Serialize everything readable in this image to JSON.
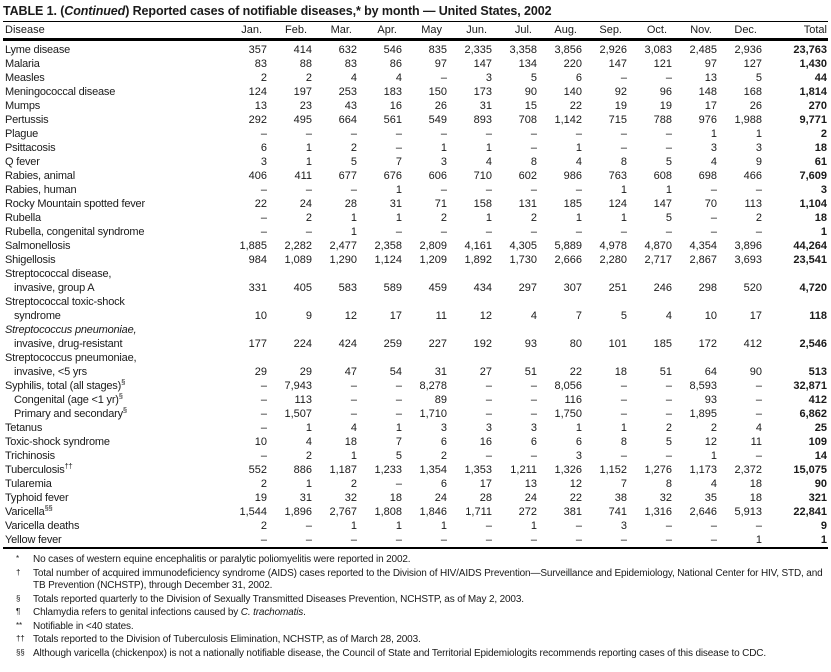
{
  "title": {
    "prefix": "TABLE 1. (",
    "continued": "Continued",
    "suffix": ") Reported cases of notifiable diseases,* by month — United States, 2002"
  },
  "table": {
    "columns": [
      "Disease",
      "Jan.",
      "Feb.",
      "Mar.",
      "Apr.",
      "May",
      "Jun.",
      "Jul.",
      "Aug.",
      "Sep.",
      "Oct.",
      "Nov.",
      "Dec.",
      "Total"
    ],
    "dash": "–",
    "rows": [
      {
        "label": "Lyme disease",
        "values": [
          "357",
          "414",
          "632",
          "546",
          "835",
          "2,335",
          "3,358",
          "3,856",
          "2,926",
          "3,083",
          "2,485",
          "2,936",
          "23,763"
        ]
      },
      {
        "label": "Malaria",
        "values": [
          "83",
          "88",
          "83",
          "86",
          "97",
          "147",
          "134",
          "220",
          "147",
          "121",
          "97",
          "127",
          "1,430"
        ]
      },
      {
        "label": "Measles",
        "values": [
          "2",
          "2",
          "4",
          "4",
          "–",
          "3",
          "5",
          "6",
          "–",
          "–",
          "13",
          "5",
          "44"
        ]
      },
      {
        "label": "Meningococcal disease",
        "values": [
          "124",
          "197",
          "253",
          "183",
          "150",
          "173",
          "90",
          "140",
          "92",
          "96",
          "148",
          "168",
          "1,814"
        ]
      },
      {
        "label": "Mumps",
        "values": [
          "13",
          "23",
          "43",
          "16",
          "26",
          "31",
          "15",
          "22",
          "19",
          "19",
          "17",
          "26",
          "270"
        ]
      },
      {
        "label": "Pertussis",
        "values": [
          "292",
          "495",
          "664",
          "561",
          "549",
          "893",
          "708",
          "1,142",
          "715",
          "788",
          "976",
          "1,988",
          "9,771"
        ]
      },
      {
        "label": "Plague",
        "values": [
          "–",
          "–",
          "–",
          "–",
          "–",
          "–",
          "–",
          "–",
          "–",
          "–",
          "1",
          "1",
          "2"
        ]
      },
      {
        "label": "Psittacosis",
        "values": [
          "6",
          "1",
          "2",
          "–",
          "1",
          "1",
          "–",
          "1",
          "–",
          "–",
          "3",
          "3",
          "18"
        ]
      },
      {
        "label": "Q fever",
        "values": [
          "3",
          "1",
          "5",
          "7",
          "3",
          "4",
          "8",
          "4",
          "8",
          "5",
          "4",
          "9",
          "61"
        ]
      },
      {
        "label": "Rabies, animal",
        "values": [
          "406",
          "411",
          "677",
          "676",
          "606",
          "710",
          "602",
          "986",
          "763",
          "608",
          "698",
          "466",
          "7,609"
        ]
      },
      {
        "label": "Rabies, human",
        "values": [
          "–",
          "–",
          "–",
          "1",
          "–",
          "–",
          "–",
          "–",
          "1",
          "1",
          "–",
          "–",
          "3"
        ]
      },
      {
        "label": "Rocky Mountain spotted fever",
        "values": [
          "22",
          "24",
          "28",
          "31",
          "71",
          "158",
          "131",
          "185",
          "124",
          "147",
          "70",
          "113",
          "1,104"
        ]
      },
      {
        "label": "Rubella",
        "values": [
          "–",
          "2",
          "1",
          "1",
          "2",
          "1",
          "2",
          "1",
          "1",
          "5",
          "–",
          "2",
          "18"
        ]
      },
      {
        "label": "Rubella, congenital syndrome",
        "values": [
          "–",
          "–",
          "1",
          "–",
          "–",
          "–",
          "–",
          "–",
          "–",
          "–",
          "–",
          "–",
          "1"
        ]
      },
      {
        "label": "Salmonellosis",
        "values": [
          "1,885",
          "2,282",
          "2,477",
          "2,358",
          "2,809",
          "4,161",
          "4,305",
          "5,889",
          "4,978",
          "4,870",
          "4,354",
          "3,896",
          "44,264"
        ]
      },
      {
        "label": "Shigellosis",
        "values": [
          "984",
          "1,089",
          "1,290",
          "1,124",
          "1,209",
          "1,892",
          "1,730",
          "2,666",
          "2,280",
          "2,717",
          "2,867",
          "3,693",
          "23,541"
        ]
      },
      {
        "label": "Streptococcal disease,",
        "values": null
      },
      {
        "label": "invasive, group A",
        "indent": 1,
        "values": [
          "331",
          "405",
          "583",
          "589",
          "459",
          "434",
          "297",
          "307",
          "251",
          "246",
          "298",
          "520",
          "4,720"
        ]
      },
      {
        "label": "Streptococcal toxic-shock",
        "values": null
      },
      {
        "label": "syndrome",
        "indent": 1,
        "values": [
          "10",
          "9",
          "12",
          "17",
          "11",
          "12",
          "4",
          "7",
          "5",
          "4",
          "10",
          "17",
          "118"
        ]
      },
      {
        "label": "Streptococcus pneumoniae,",
        "italic": true,
        "values": null
      },
      {
        "label": "invasive, drug-resistant",
        "indent": 1,
        "values": [
          "177",
          "224",
          "424",
          "259",
          "227",
          "192",
          "93",
          "80",
          "101",
          "185",
          "172",
          "412",
          "2,546"
        ]
      },
      {
        "label": "Streptococcus pneumoniae,",
        "values": null
      },
      {
        "label": "invasive, <5 yrs",
        "indent": 1,
        "values": [
          "29",
          "29",
          "47",
          "54",
          "31",
          "27",
          "51",
          "22",
          "18",
          "51",
          "64",
          "90",
          "513"
        ]
      },
      {
        "label": "Syphilis, total (all stages)",
        "sup": "§",
        "values": [
          "–",
          "7,943",
          "–",
          "–",
          "8,278",
          "–",
          "–",
          "8,056",
          "–",
          "–",
          "8,593",
          "–",
          "32,871"
        ]
      },
      {
        "label": "Congenital (age <1 yr)",
        "sup": "§",
        "indent": 1,
        "values": [
          "–",
          "113",
          "–",
          "–",
          "89",
          "–",
          "–",
          "116",
          "–",
          "–",
          "93",
          "–",
          "412"
        ]
      },
      {
        "label": "Primary and secondary",
        "sup": "§",
        "indent": 1,
        "values": [
          "–",
          "1,507",
          "–",
          "–",
          "1,710",
          "–",
          "–",
          "1,750",
          "–",
          "–",
          "1,895",
          "–",
          "6,862"
        ]
      },
      {
        "label": "Tetanus",
        "values": [
          "–",
          "1",
          "4",
          "1",
          "3",
          "3",
          "3",
          "1",
          "1",
          "2",
          "2",
          "4",
          "25"
        ]
      },
      {
        "label": "Toxic-shock syndrome",
        "values": [
          "10",
          "4",
          "18",
          "7",
          "6",
          "16",
          "6",
          "6",
          "8",
          "5",
          "12",
          "11",
          "109"
        ]
      },
      {
        "label": "Trichinosis",
        "values": [
          "–",
          "2",
          "1",
          "5",
          "2",
          "–",
          "–",
          "3",
          "–",
          "–",
          "1",
          "–",
          "14"
        ]
      },
      {
        "label": "Tuberculosis",
        "sup": "††",
        "values": [
          "552",
          "886",
          "1,187",
          "1,233",
          "1,354",
          "1,353",
          "1,211",
          "1,326",
          "1,152",
          "1,276",
          "1,173",
          "2,372",
          "15,075"
        ]
      },
      {
        "label": "Tularemia",
        "values": [
          "2",
          "1",
          "2",
          "–",
          "6",
          "17",
          "13",
          "12",
          "7",
          "8",
          "4",
          "18",
          "90"
        ]
      },
      {
        "label": "Typhoid fever",
        "values": [
          "19",
          "31",
          "32",
          "18",
          "24",
          "28",
          "24",
          "22",
          "38",
          "32",
          "35",
          "18",
          "321"
        ]
      },
      {
        "label": "Varicella",
        "sup": "§§",
        "values": [
          "1,544",
          "1,896",
          "2,767",
          "1,808",
          "1,846",
          "1,711",
          "272",
          "381",
          "741",
          "1,316",
          "2,646",
          "5,913",
          "22,841"
        ]
      },
      {
        "label": "Varicella deaths",
        "values": [
          "2",
          "–",
          "1",
          "1",
          "1",
          "–",
          "1",
          "–",
          "3",
          "–",
          "–",
          "–",
          "9"
        ]
      },
      {
        "label": "Yellow fever",
        "values": [
          "–",
          "–",
          "–",
          "–",
          "–",
          "–",
          "–",
          "–",
          "–",
          "–",
          "–",
          "1",
          "1"
        ]
      }
    ]
  },
  "footnotes": [
    {
      "sym": "*",
      "pre": "No cases of western equine encephalitis or paralytic poliomyelitis were reported in 2002.",
      "it": "",
      "post": ""
    },
    {
      "sym": "†",
      "pre": "Total number of acquired immunodeficiency syndrome (AIDS) cases reported to the Division of HIV/AIDS Prevention—Surveillance and Epidemiology, National Center for HIV, STD, and TB Prevention (NCHSTP), through December 31, 2002.",
      "it": "",
      "post": ""
    },
    {
      "sym": "§",
      "pre": "Totals reported quarterly to the Division of Sexually Transmitted Diseases Prevention, NCHSTP, as of May 2, 2003.",
      "it": "",
      "post": ""
    },
    {
      "sym": "¶",
      "pre": "Chlamydia refers to genital infections caused by ",
      "it": "C. trachomatis",
      "post": "."
    },
    {
      "sym": "**",
      "pre": "Notifiable in <40 states.",
      "it": "",
      "post": ""
    },
    {
      "sym": "††",
      "pre": "Totals reported to the Division of Tuberculosis Elimination, NCHSTP, as of March 28, 2003.",
      "it": "",
      "post": ""
    },
    {
      "sym": "§§",
      "pre": "Although varicella (chickenpox) is not a nationally notifiable disease, the Council of State and Territorial Epidemiologits recommends reporting cases of this disease to CDC.",
      "it": "",
      "post": ""
    }
  ]
}
